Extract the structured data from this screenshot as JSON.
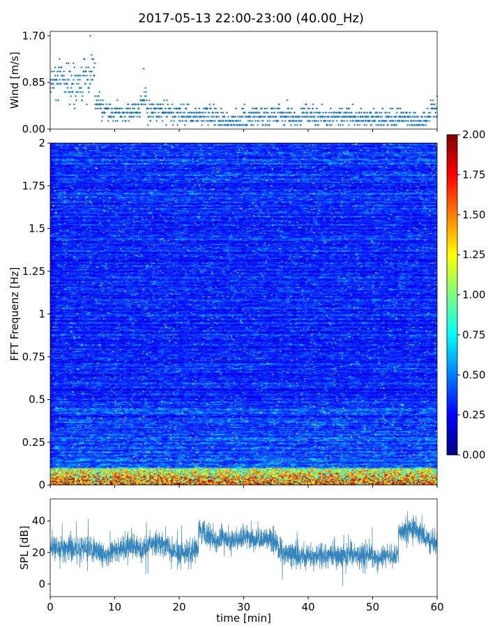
{
  "chart_data": [
    {
      "type": "scatter",
      "title": "2017-05-13 22:00-23:00 (40.00_Hz)",
      "ylabel": "Wind [m/s]",
      "xlabel": "",
      "xlim": [
        0,
        60
      ],
      "ylim": [
        0,
        1.78
      ],
      "yticks": [
        "0.00",
        "0.85",
        "1.70"
      ],
      "xticks": [
        0,
        10,
        20,
        30,
        40,
        50,
        60
      ],
      "marker": "+",
      "color": "#1f77b4",
      "x_unit": "min",
      "wind_median_per_minute": [
        0.8,
        0.85,
        0.85,
        0.8,
        0.8,
        0.85,
        0.9,
        0.45,
        0.35,
        0.3,
        0.3,
        0.3,
        0.3,
        0.35,
        0.55,
        0.3,
        0.3,
        0.35,
        0.3,
        0.25,
        0.25,
        0.25,
        0.25,
        0.25,
        0.25,
        0.2,
        0.2,
        0.15,
        0.15,
        0.15,
        0.2,
        0.2,
        0.2,
        0.25,
        0.25,
        0.3,
        0.25,
        0.2,
        0.2,
        0.25,
        0.25,
        0.2,
        0.2,
        0.2,
        0.25,
        0.2,
        0.25,
        0.2,
        0.2,
        0.2,
        0.2,
        0.2,
        0.2,
        0.15,
        0.2,
        0.2,
        0.15,
        0.15,
        0.2,
        0.35
      ],
      "peaks": [
        {
          "x": 6.2,
          "y": 1.7
        },
        {
          "x": 14.5,
          "y": 1.1
        },
        {
          "x": 60,
          "y": 0.6
        }
      ]
    },
    {
      "type": "heatmap",
      "ylabel": "FFT Frequenz [Hz]",
      "xlim": [
        0,
        60
      ],
      "ylim": [
        0,
        2
      ],
      "yticks": [
        "0",
        "0.25",
        "0.5",
        "0.75",
        "1",
        "1.25",
        "1.5",
        "1.75",
        "2"
      ],
      "colormap": "jet",
      "zlim": [
        0,
        2
      ],
      "colorbar_ticks": [
        "0.00",
        "0.25",
        "0.50",
        "0.75",
        "1.00",
        "1.25",
        "1.50",
        "1.75",
        "2.00"
      ],
      "typical_level": 0.35,
      "low_frequency_band_hz": 0.1,
      "low_frequency_level": 1.4
    },
    {
      "type": "line",
      "xlabel": "time [min]",
      "ylabel": "SPL [dB]",
      "xlim": [
        0,
        60
      ],
      "ylim": [
        -8,
        54
      ],
      "xticks": [
        "0",
        "10",
        "20",
        "30",
        "40",
        "50",
        "60"
      ],
      "yticks": [
        "0",
        "20",
        "40"
      ],
      "color": "#1f77b4",
      "spl_mean_per_minute": [
        24,
        23,
        22,
        23,
        22,
        22,
        21,
        20,
        19,
        19,
        22,
        23,
        24,
        24,
        23,
        24,
        25,
        26,
        24,
        21,
        19,
        20,
        21,
        35,
        32,
        30,
        27,
        30,
        27,
        29,
        30,
        29,
        28,
        27,
        30,
        25,
        20,
        19,
        18,
        18,
        18,
        18,
        19,
        18,
        18,
        18,
        18,
        19,
        18,
        18,
        18,
        17,
        18,
        18,
        33,
        34,
        35,
        34,
        30,
        27
      ]
    }
  ]
}
